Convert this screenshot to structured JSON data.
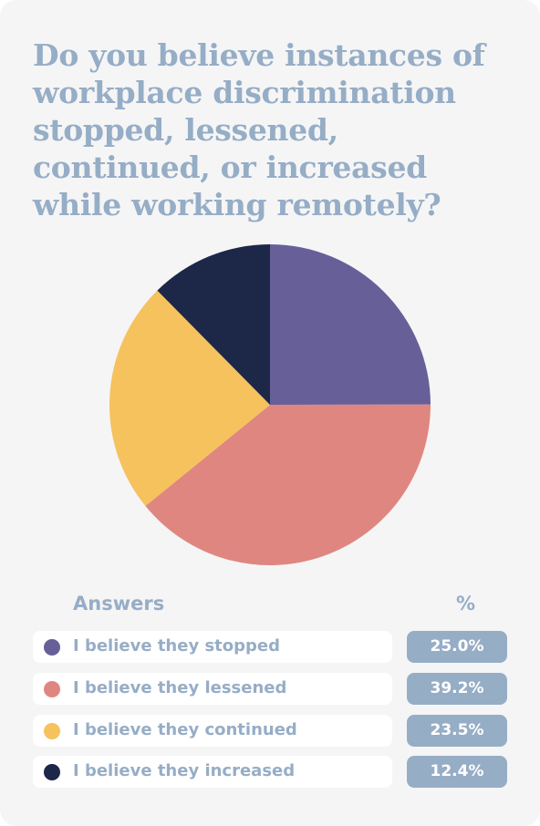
{
  "title": "Do you believe instances of workplace discrimination stopped, lessened, continued, or increased while working remotely?",
  "legend": {
    "answers_header": "Answers",
    "percent_header": "%"
  },
  "chart_data": {
    "type": "pie",
    "title": "Do you believe instances of workplace discrimination stopped, lessened, continued, or increased while working remotely?",
    "categories": [
      "I believe they stopped",
      "I believe they lessened",
      "I believe they continued",
      "I believe they increased"
    ],
    "values": [
      25.0,
      39.2,
      23.5,
      12.4
    ],
    "value_labels": [
      "25.0%",
      "39.2%",
      "23.5%",
      "12.4%"
    ],
    "colors": [
      "#675f98",
      "#e08680",
      "#f5c25d",
      "#1d2748"
    ],
    "legend_placement": "bottom"
  },
  "colors": {
    "background": "#f5f5f6",
    "text_accent": "#96adc6",
    "badge": "#96adc6"
  }
}
